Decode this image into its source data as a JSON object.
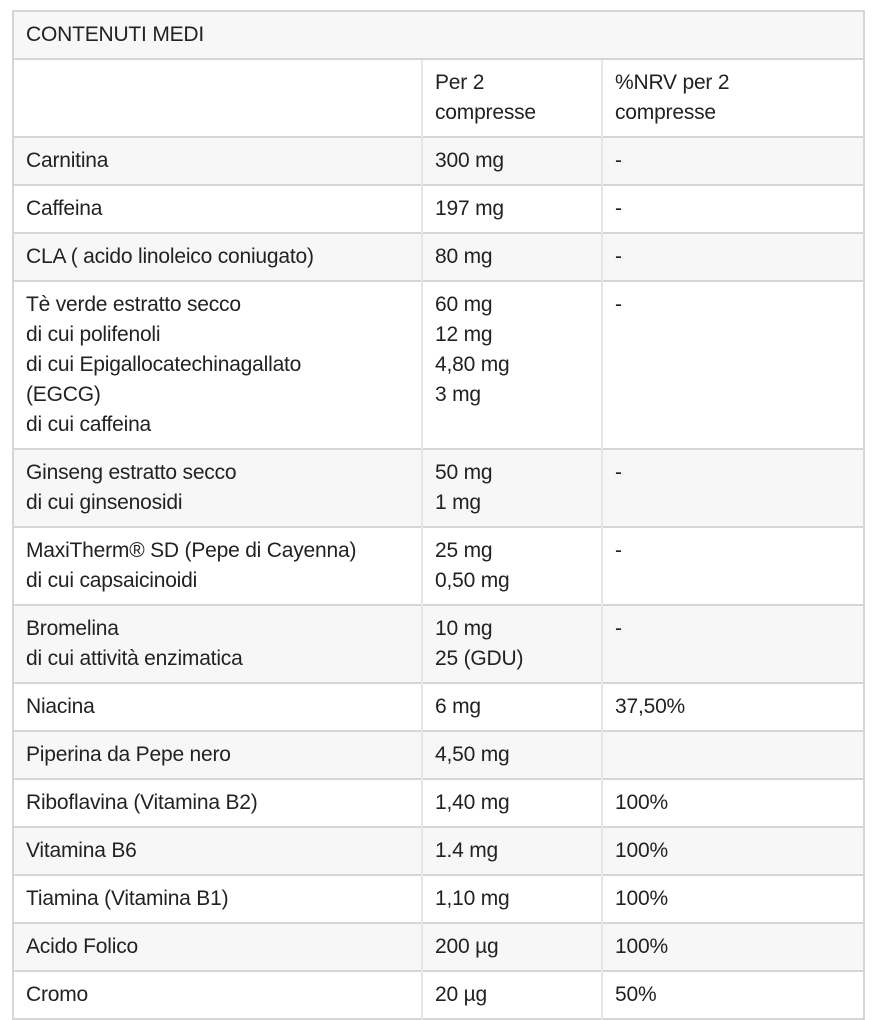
{
  "table": {
    "title": "CONTENUTI MEDI",
    "headers": {
      "ingredient": "",
      "amount": "Per 2\ncompresse",
      "nrv": "%NRV per 2\ncompresse"
    },
    "rows": [
      {
        "name": "Carnitina",
        "amount": "300 mg",
        "nrv": "-"
      },
      {
        "name": "Caffeina",
        "amount": "197 mg",
        "nrv": "-"
      },
      {
        "name": "CLA ( acido linoleico coniugato)",
        "amount": "80 mg",
        "nrv": "-"
      },
      {
        "name": "Tè verde estratto secco\ndi cui polifenoli\ndi cui Epigallocatechinagallato\n(EGCG)\ndi cui caffeina",
        "amount": "60 mg\n12 mg\n4,80 mg\n3 mg",
        "nrv": "-"
      },
      {
        "name": "Ginseng estratto secco\ndi cui ginsenosidi",
        "amount": "50 mg\n1 mg",
        "nrv": "-"
      },
      {
        "name": "MaxiTherm® SD (Pepe di Cayenna)\ndi cui capsaicinoidi",
        "amount": "25 mg\n0,50 mg",
        "nrv": "-"
      },
      {
        "name": "Bromelina\ndi cui attività enzimatica",
        "amount": "10 mg\n25 (GDU)",
        "nrv": "-"
      },
      {
        "name": "Niacina",
        "amount": "6 mg",
        "nrv": "37,50%"
      },
      {
        "name": "Piperina da Pepe nero",
        "amount": "4,50 mg",
        "nrv": ""
      },
      {
        "name": "Riboflavina (Vitamina B2)",
        "amount": "1,40 mg",
        "nrv": "100%"
      },
      {
        "name": "Vitamina B6",
        "amount": "1.4 mg",
        "nrv": "100%"
      },
      {
        "name": "Tiamina (Vitamina B1)",
        "amount": "1,10 mg",
        "nrv": "100%"
      },
      {
        "name": "Acido Folico",
        "amount": "200 µg",
        "nrv": "100%"
      },
      {
        "name": "Cromo",
        "amount": "20 µg",
        "nrv": "50%"
      }
    ],
    "colors": {
      "row_alt_background": "#f7f7f7",
      "row_background": "#ffffff",
      "border_horizontal": "#d6d6d6",
      "border_vertical": "#e6e6e6",
      "text": "#222222"
    }
  }
}
